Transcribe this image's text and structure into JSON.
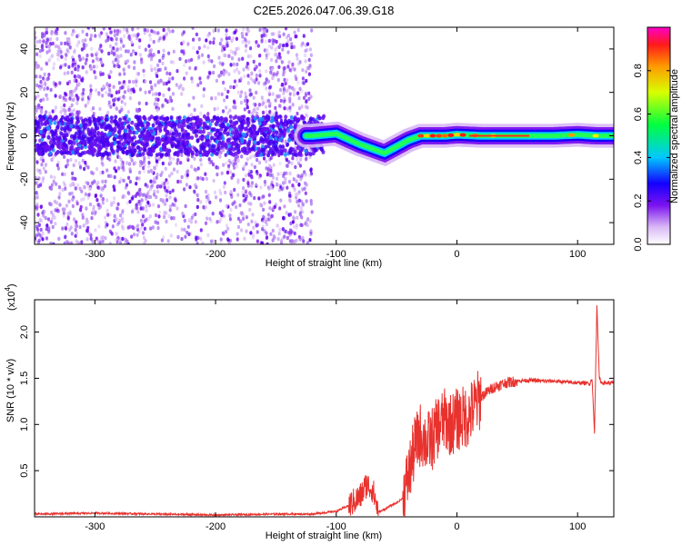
{
  "title": "C2E5.2026.047.06.39.G18",
  "chart_data": [
    {
      "type": "heatmap",
      "xlabel": "Height of straight line (km)",
      "ylabel": "Frequency (Hz)",
      "xlim": [
        -350,
        130
      ],
      "ylim": [
        -50,
        50
      ],
      "xticks": [
        -300,
        -200,
        -100,
        0,
        100
      ],
      "xtick_labels": [
        "-300",
        "-200",
        "-100",
        "0",
        "100"
      ],
      "yticks": [
        -40,
        -20,
        0,
        20,
        40
      ],
      "ytick_labels": [
        "-40",
        "-20",
        "0",
        "20",
        "40"
      ],
      "colorbar": {
        "label": "Normalized spectral amplitude",
        "range": [
          0,
          1
        ],
        "ticks": [
          0.0,
          0.2,
          0.4,
          0.6,
          0.8
        ],
        "tick_labels": [
          "0.0",
          "0.2",
          "0.4",
          "0.6",
          "0.8"
        ],
        "colormap": "rainbow"
      },
      "ridge": {
        "x": [
          -350,
          -300,
          -250,
          -200,
          -150,
          -120,
          -100,
          -80,
          -70,
          -60,
          -50,
          -40,
          -30,
          -20,
          -10,
          0,
          20,
          50,
          80,
          100,
          115,
          130
        ],
        "y": [
          0,
          0,
          0,
          0,
          0,
          0,
          1,
          -4,
          -6,
          -8,
          -5,
          -2,
          0,
          0,
          0,
          0.5,
          0,
          0,
          0,
          0.5,
          0,
          0
        ]
      },
      "grid": false
    },
    {
      "type": "line",
      "xlabel": "Height of straight line (km)",
      "ylabel": "SNR (10 * v/v)",
      "scale_label": "(x10",
      "scale_exponent": "4",
      "xlim": [
        -350,
        130
      ],
      "ylim": [
        0,
        2.35
      ],
      "xticks": [
        -300,
        -200,
        -100,
        0,
        100
      ],
      "xtick_labels": [
        "-300",
        "-200",
        "-100",
        "0",
        "100"
      ],
      "yticks": [
        0.5,
        1.0,
        1.5,
        2.0
      ],
      "ytick_labels": [
        "0.5",
        "1.0",
        "1.5",
        "2.0"
      ],
      "series": [
        {
          "color": "#e8322e",
          "x": [
            -350,
            -300,
            -250,
            -200,
            -150,
            -120,
            -100,
            -90,
            -80,
            -75,
            -70,
            -65,
            -60,
            -55,
            -50,
            -45,
            -40,
            -35,
            -30,
            -25,
            -20,
            -15,
            -10,
            -5,
            0,
            10,
            20,
            30,
            40,
            50,
            60,
            70,
            80,
            90,
            100,
            105,
            110,
            112,
            114,
            116,
            118,
            120,
            125,
            130
          ],
          "y": [
            0.03,
            0.04,
            0.03,
            0.02,
            0.03,
            0.03,
            0.06,
            0.12,
            0.22,
            0.35,
            0.3,
            0.05,
            0.08,
            0.12,
            0.15,
            0.2,
            0.45,
            0.75,
            0.9,
            0.8,
            0.85,
            1.0,
            1.05,
            1.0,
            1.05,
            1.1,
            1.3,
            1.4,
            1.45,
            1.47,
            1.48,
            1.47,
            1.47,
            1.46,
            1.45,
            1.45,
            1.44,
            1.5,
            0.9,
            2.3,
            1.5,
            1.45,
            1.45,
            1.45
          ]
        }
      ],
      "grid": false
    }
  ]
}
